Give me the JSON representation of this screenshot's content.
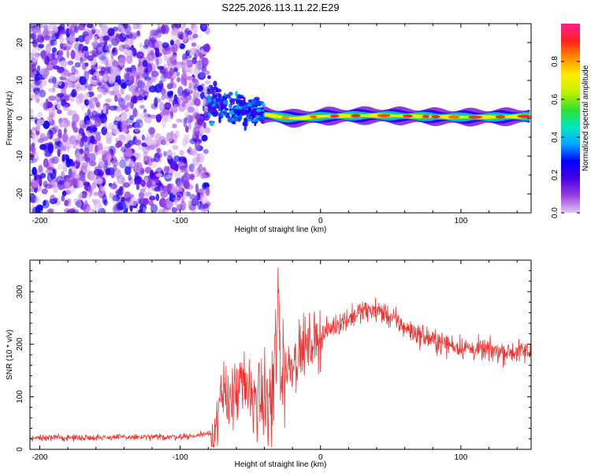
{
  "chart_data": [
    {
      "type": "heatmap",
      "title": "S225.2026.113.11.22.E29",
      "xlabel": "Height of straight line (km)",
      "ylabel": "Frequency (Hz)",
      "xlim": [
        -207,
        150
      ],
      "ylim": [
        -25,
        25
      ],
      "xticks": [
        -200,
        -100,
        0,
        100
      ],
      "yticks": [
        -20,
        -10,
        0,
        10,
        20
      ],
      "colorbar": {
        "label": "Normalized spectral amplitude",
        "range": [
          0.0,
          1.0
        ],
        "ticks": [
          0.0,
          0.2,
          0.4,
          0.6,
          0.8
        ],
        "colormap": [
          "#e4c8f4",
          "#9a40e0",
          "#4a00e8",
          "#0000ff",
          "#00a8ff",
          "#00e8c0",
          "#30e030",
          "#c0f000",
          "#ffee00",
          "#ff9000",
          "#ff2020",
          "#ff2090"
        ]
      },
      "regions": [
        {
          "name": "noise",
          "x_range": [
            -207,
            -80
          ],
          "freq_range": [
            -25,
            25
          ],
          "amplitude": 0.1
        },
        {
          "name": "onset",
          "x_range": [
            -80,
            -40
          ],
          "freq_center": 4,
          "amplitude": 0.35
        },
        {
          "name": "ridge",
          "x_range": [
            -40,
            150
          ],
          "freq_center": 0.5,
          "amplitude": 0.95
        }
      ]
    },
    {
      "type": "line",
      "xlabel": "Height of straight line (km)",
      "ylabel": "SNR (10 * v/v)",
      "xlim": [
        -207,
        150
      ],
      "ylim": [
        0,
        360
      ],
      "xticks": [
        -200,
        -100,
        0,
        100
      ],
      "yticks": [
        0,
        100,
        200,
        300
      ],
      "series": [
        {
          "name": "SNR",
          "color": "#ee3333",
          "x": [
            -207,
            -180,
            -150,
            -120,
            -90,
            -75,
            -70,
            -65,
            -60,
            -55,
            -50,
            -45,
            -40,
            -35,
            -30,
            -28,
            -25,
            -20,
            -15,
            -10,
            -5,
            0,
            10,
            20,
            30,
            40,
            50,
            60,
            70,
            80,
            90,
            100,
            110,
            120,
            130,
            140,
            150
          ],
          "values": [
            22,
            22,
            23,
            23,
            25,
            35,
            90,
            110,
            100,
            120,
            105,
            95,
            90,
            80,
            250,
            130,
            150,
            170,
            185,
            195,
            205,
            215,
            235,
            250,
            262,
            265,
            252,
            232,
            218,
            208,
            200,
            195,
            190,
            188,
            186,
            185,
            185
          ]
        }
      ]
    }
  ]
}
